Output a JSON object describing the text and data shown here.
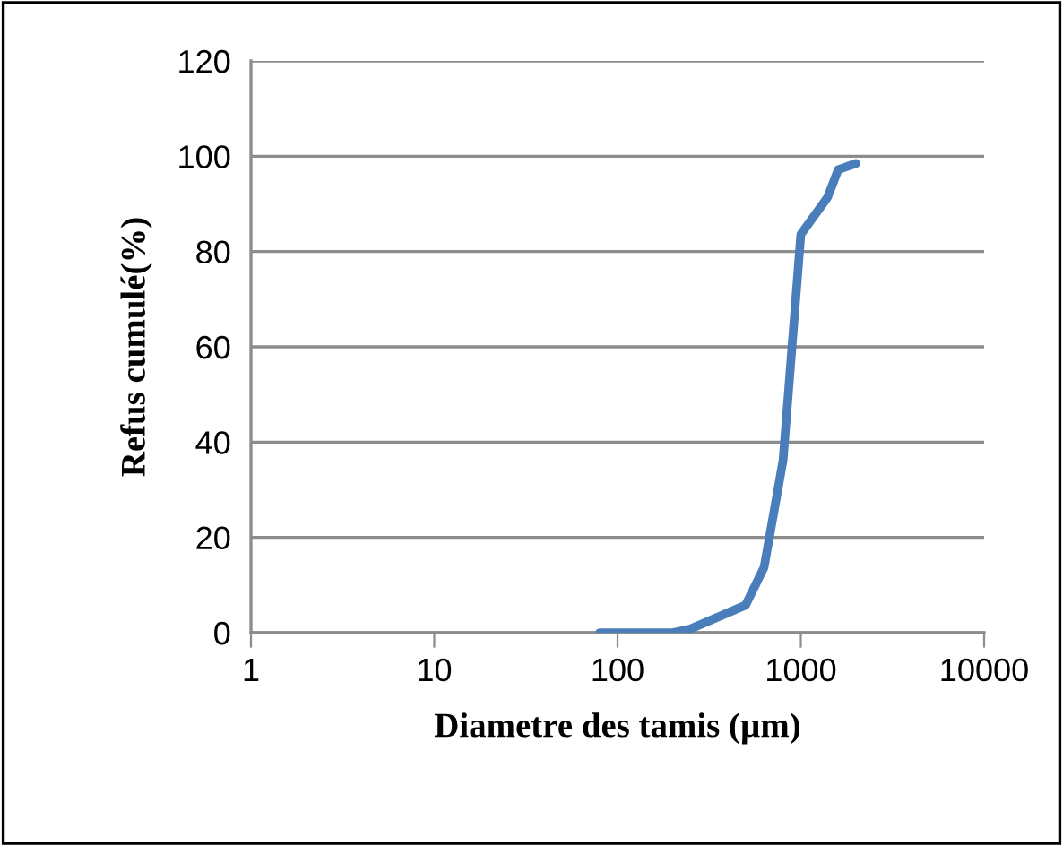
{
  "chart_data": {
    "type": "line",
    "xlabel": "Diametre des tamis (µm)",
    "ylabel": "Refus cumulé(%)",
    "log": "x",
    "xlim": [
      1,
      10000
    ],
    "xticks": [
      1,
      10,
      100,
      1000,
      10000
    ],
    "ylim": [
      0,
      120
    ],
    "yticks": [
      0,
      20,
      40,
      60,
      80,
      100,
      120
    ],
    "grid": "y",
    "marker": "none",
    "line_style": "solid",
    "legend": false,
    "series": [
      {
        "color": "#4a7ebb",
        "x": [
          80,
          200,
          250,
          500,
          630,
          800,
          1000,
          1400,
          1600,
          2000
        ],
        "values": [
          0,
          0,
          0.8,
          5.8,
          13.7,
          36.2,
          83.6,
          91.4,
          97.2,
          98.5
        ]
      }
    ]
  }
}
